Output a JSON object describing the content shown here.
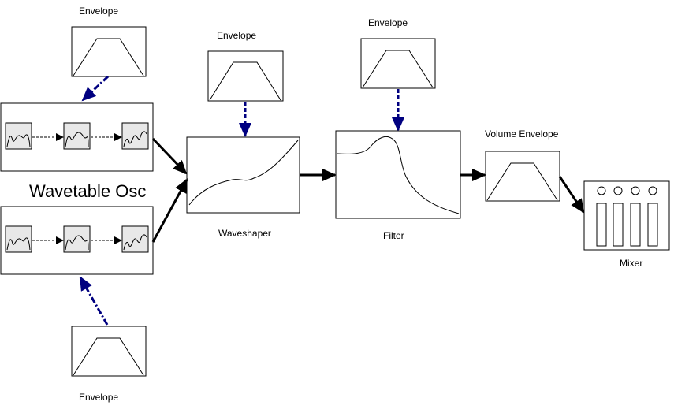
{
  "labels": {
    "env_top_left": "Envelope",
    "env_waveshaper": "Envelope",
    "env_filter": "Envelope",
    "env_bottom_left": "Envelope",
    "volume_envelope": "Volume Envelope",
    "wavetable_osc": "Wavetable Osc",
    "waveshaper": "Waveshaper",
    "filter": "Filter",
    "mixer": "Mixer"
  },
  "colors": {
    "stroke": "#000000",
    "modulation_arrow": "#000080",
    "wavetable_frame_fill": "#e8e8e8",
    "background": "#ffffff"
  }
}
